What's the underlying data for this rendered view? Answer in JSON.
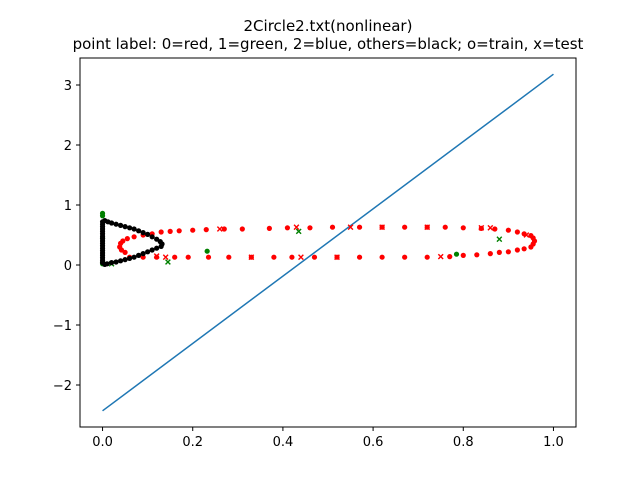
{
  "chart_data": {
    "type": "scatter",
    "title": "2Circle2.txt(nonlinear)",
    "subtitle": "point label: 0=red, 1=green, 2=blue, others=black; o=train, x=test",
    "xlim": [
      -0.05,
      1.05
    ],
    "ylim": [
      -2.7,
      3.45
    ],
    "xticks": [
      0.0,
      0.2,
      0.4,
      0.6,
      0.8,
      1.0
    ],
    "xtick_labels": [
      "0.0",
      "0.2",
      "0.4",
      "0.6",
      "0.8",
      "1.0"
    ],
    "yticks": [
      -2,
      -1,
      0,
      1,
      2,
      3
    ],
    "ytick_labels": [
      "−2",
      "−1",
      "0",
      "1",
      "2",
      "3"
    ],
    "grid": false,
    "colors": {
      "line": "#1f77b4",
      "red": "#ff0000",
      "green": "#008000",
      "black": "#000000"
    },
    "line": {
      "x": [
        0.0,
        1.0
      ],
      "y": [
        -2.43,
        3.18
      ]
    },
    "series": [
      {
        "label_class": "0",
        "color": "red",
        "marker": "o",
        "points": [
          [
            0.06,
            0.13
          ],
          [
            0.09,
            0.13
          ],
          [
            0.12,
            0.13
          ],
          [
            0.16,
            0.13
          ],
          [
            0.19,
            0.13
          ],
          [
            0.235,
            0.13
          ],
          [
            0.28,
            0.13
          ],
          [
            0.33,
            0.13
          ],
          [
            0.38,
            0.13
          ],
          [
            0.42,
            0.13
          ],
          [
            0.47,
            0.13
          ],
          [
            0.52,
            0.13
          ],
          [
            0.57,
            0.13
          ],
          [
            0.62,
            0.13
          ],
          [
            0.67,
            0.13
          ],
          [
            0.72,
            0.13
          ],
          [
            0.77,
            0.14
          ],
          [
            0.8,
            0.16
          ],
          [
            0.83,
            0.17
          ],
          [
            0.86,
            0.19
          ],
          [
            0.88,
            0.21
          ],
          [
            0.9,
            0.22
          ],
          [
            0.92,
            0.25
          ],
          [
            0.935,
            0.27
          ],
          [
            0.95,
            0.3
          ],
          [
            0.955,
            0.35
          ],
          [
            0.958,
            0.4
          ],
          [
            0.955,
            0.45
          ],
          [
            0.95,
            0.49
          ],
          [
            0.935,
            0.52
          ],
          [
            0.92,
            0.55
          ],
          [
            0.9,
            0.58
          ],
          [
            0.87,
            0.6
          ],
          [
            0.84,
            0.61
          ],
          [
            0.8,
            0.62
          ],
          [
            0.76,
            0.63
          ],
          [
            0.72,
            0.63
          ],
          [
            0.67,
            0.63
          ],
          [
            0.62,
            0.63
          ],
          [
            0.57,
            0.63
          ],
          [
            0.51,
            0.63
          ],
          [
            0.46,
            0.62
          ],
          [
            0.41,
            0.62
          ],
          [
            0.37,
            0.61
          ],
          [
            0.31,
            0.6
          ],
          [
            0.27,
            0.6
          ],
          [
            0.23,
            0.59
          ],
          [
            0.2,
            0.58
          ],
          [
            0.17,
            0.57
          ],
          [
            0.15,
            0.56
          ],
          [
            0.13,
            0.55
          ],
          [
            0.11,
            0.52
          ],
          [
            0.09,
            0.5
          ],
          [
            0.07,
            0.47
          ],
          [
            0.055,
            0.44
          ],
          [
            0.045,
            0.4
          ],
          [
            0.04,
            0.36
          ],
          [
            0.038,
            0.3
          ],
          [
            0.042,
            0.25
          ],
          [
            0.05,
            0.21
          ]
        ]
      },
      {
        "label_class": "0",
        "color": "red",
        "marker": "x",
        "points": [
          [
            0.14,
            0.13
          ],
          [
            0.33,
            0.13
          ],
          [
            0.44,
            0.13
          ],
          [
            0.52,
            0.13
          ],
          [
            0.75,
            0.14
          ],
          [
            0.84,
            0.62
          ],
          [
            0.72,
            0.63
          ],
          [
            0.62,
            0.63
          ],
          [
            0.55,
            0.63
          ],
          [
            0.43,
            0.63
          ],
          [
            0.26,
            0.6
          ],
          [
            0.94,
            0.5
          ],
          [
            0.86,
            0.62
          ],
          [
            0.12,
            0.15
          ]
        ]
      },
      {
        "label_class": "1",
        "color": "green",
        "marker": "o",
        "points": [
          [
            0.0,
            0.86
          ],
          [
            0.0,
            0.82
          ],
          [
            0.0,
            0.05
          ],
          [
            0.0,
            0.02
          ],
          [
            0.232,
            0.23
          ],
          [
            0.785,
            0.18
          ],
          [
            0.0,
            0.45
          ]
        ]
      },
      {
        "label_class": "1",
        "color": "green",
        "marker": "x",
        "points": [
          [
            0.435,
            0.56
          ],
          [
            0.88,
            0.43
          ],
          [
            0.145,
            0.05
          ],
          [
            0.02,
            0.02
          ]
        ]
      },
      {
        "label_class": "others",
        "color": "black",
        "marker": "o",
        "points": [
          [
            0.0,
            0.72
          ],
          [
            0.0,
            0.68
          ],
          [
            0.0,
            0.64
          ],
          [
            0.0,
            0.6
          ],
          [
            0.0,
            0.56
          ],
          [
            0.0,
            0.52
          ],
          [
            0.0,
            0.48
          ],
          [
            0.0,
            0.44
          ],
          [
            0.0,
            0.4
          ],
          [
            0.0,
            0.36
          ],
          [
            0.0,
            0.32
          ],
          [
            0.0,
            0.28
          ],
          [
            0.0,
            0.24
          ],
          [
            0.0,
            0.2
          ],
          [
            0.0,
            0.16
          ],
          [
            0.0,
            0.12
          ],
          [
            0.0,
            0.08
          ],
          [
            0.0,
            0.04
          ],
          [
            0.005,
            0.74
          ],
          [
            0.012,
            0.72
          ],
          [
            0.02,
            0.7
          ],
          [
            0.03,
            0.68
          ],
          [
            0.04,
            0.66
          ],
          [
            0.05,
            0.64
          ],
          [
            0.06,
            0.62
          ],
          [
            0.07,
            0.6
          ],
          [
            0.08,
            0.57
          ],
          [
            0.09,
            0.54
          ],
          [
            0.1,
            0.51
          ],
          [
            0.11,
            0.47
          ],
          [
            0.12,
            0.43
          ],
          [
            0.128,
            0.39
          ],
          [
            0.132,
            0.35
          ],
          [
            0.13,
            0.31
          ],
          [
            0.12,
            0.28
          ],
          [
            0.11,
            0.25
          ],
          [
            0.1,
            0.22
          ],
          [
            0.09,
            0.19
          ],
          [
            0.08,
            0.16
          ],
          [
            0.07,
            0.13
          ],
          [
            0.06,
            0.11
          ],
          [
            0.05,
            0.09
          ],
          [
            0.04,
            0.07
          ],
          [
            0.03,
            0.05
          ],
          [
            0.02,
            0.04
          ],
          [
            0.01,
            0.02
          ],
          [
            0.005,
            0.01
          ]
        ]
      }
    ]
  }
}
